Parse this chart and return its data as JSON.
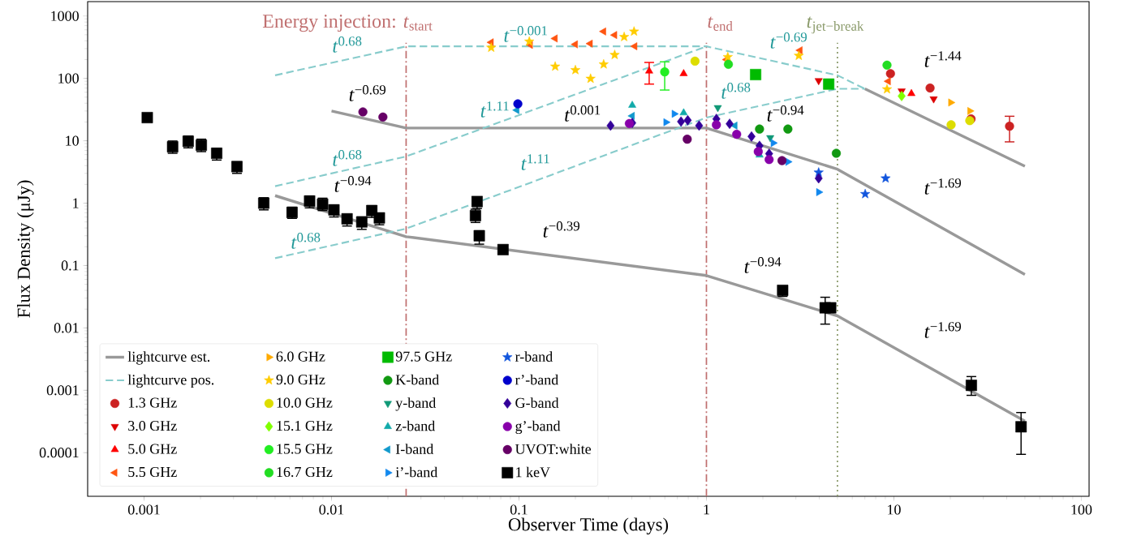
{
  "chart_data": {
    "type": "scatter",
    "xlabel": "Observer Time (days)",
    "ylabel": "Flux Density (μJy)",
    "log": "xy",
    "xlim": [
      0.0005,
      110
    ],
    "ylim": [
      2e-05,
      1700
    ],
    "xticks": [
      0.001,
      0.01,
      0.1,
      1,
      10,
      100
    ],
    "yticks": [
      0.0001,
      0.001,
      0.01,
      0.1,
      1,
      10,
      100,
      1000
    ],
    "legend": "bottom left",
    "series": [
      {
        "name": "lightcurve est.",
        "type": "line",
        "color": "#999999",
        "line_style": "solid",
        "x": [
          0.01,
          0.025,
          1,
          5,
          50
        ],
        "values": [
          30,
          16,
          16,
          3.5,
          0.072
        ]
      },
      {
        "type": "line",
        "color": "#999999",
        "line_style": "solid",
        "x": [
          0.005,
          0.025,
          1,
          5,
          50
        ],
        "values": [
          1.32,
          0.29,
          0.069,
          0.0156,
          0.00032
        ]
      },
      {
        "type": "line",
        "color": "#999999",
        "line_style": "solid",
        "x": [
          7,
          50
        ],
        "values": [
          68,
          3.9
        ]
      },
      {
        "name": "lightcurve pos.",
        "type": "line",
        "color": "#88cccc",
        "line_style": "dashed",
        "x": [
          0.005,
          0.025,
          1,
          5,
          7
        ],
        "values": [
          112,
          326,
          326,
          112,
          68
        ]
      },
      {
        "type": "line",
        "color": "#88cccc",
        "line_style": "dashed",
        "x": [
          0.005,
          0.025,
          1
        ],
        "values": [
          1.87,
          5.6,
          326
        ]
      },
      {
        "type": "line",
        "color": "#88cccc",
        "line_style": "dashed",
        "x": [
          0.005,
          0.025,
          1,
          5,
          7
        ],
        "values": [
          0.131,
          0.39,
          23.5,
          68,
          68
        ]
      },
      {
        "name": "1.3 GHz",
        "color": "#cc2222",
        "marker": "circle",
        "x": [
          9.59,
          15.6,
          25.8,
          41.4
        ],
        "values": [
          119,
          70,
          22.4,
          17.1
        ],
        "errors": [
          null,
          null,
          null,
          [
            9.6,
            24.7
          ]
        ]
      },
      {
        "name": "3.0 GHz",
        "color": "#dd0000",
        "marker": "triangle-down",
        "x": [
          3.97,
          11.0,
          16.3
        ],
        "values": [
          92,
          63,
          47
        ]
      },
      {
        "name": "5.0 GHz",
        "color": "#ff0000",
        "marker": "triangle",
        "x": [
          0.495,
          0.756,
          12.4
        ],
        "values": [
          131,
          119,
          57
        ],
        "errors": [
          [
            81,
            180
          ],
          null,
          null
        ]
      },
      {
        "name": "5.5 GHz",
        "color": "#ff5511",
        "marker": "triangle-left",
        "x": [
          0.0711,
          0.115,
          0.156,
          0.2,
          0.24,
          0.283,
          0.324,
          0.415,
          1.28,
          3.16,
          9.34
        ],
        "values": [
          378,
          344,
          436,
          351,
          361,
          565,
          495,
          327,
          200,
          282,
          90
        ]
      },
      {
        "name": "6.0 GHz",
        "color": "#ffaa00",
        "marker": "triangle-right",
        "x": [
          20.1,
          25.4
        ],
        "values": [
          41,
          30
        ]
      },
      {
        "name": "9.0 GHz",
        "color": "#ffcc00",
        "marker": "star",
        "x": [
          0.0711,
          0.1135,
          0.156,
          0.2,
          0.241,
          0.283,
          0.324,
          0.364,
          0.411,
          1.3,
          3.11,
          9.19
        ],
        "values": [
          311,
          390,
          155,
          136,
          99,
          168,
          238,
          462,
          565,
          220,
          231,
          67
        ]
      },
      {
        "name": "10.0 GHz",
        "color": "#dddd00",
        "marker": "circle",
        "x": [
          0.869,
          20.2,
          25.4
        ],
        "values": [
          189,
          18,
          21
        ]
      },
      {
        "name": "15.1 GHz",
        "color": "#80ff00",
        "marker": "diamond",
        "x": [
          11.0
        ],
        "values": [
          52
        ]
      },
      {
        "name": "15.5 GHz",
        "color": "#22ee22",
        "marker": "circle",
        "x": [
          0.599
        ],
        "values": [
          127
        ],
        "errors": [
          [
            65,
            184
          ]
        ]
      },
      {
        "name": "16.7 GHz",
        "color": "#22dd22",
        "marker": "circle",
        "x": [
          1.31,
          9.19
        ],
        "values": [
          168,
          163
        ]
      },
      {
        "name": "97.5 GHz",
        "color": "#00bb00",
        "marker": "square",
        "x": [
          1.83,
          4.49
        ],
        "values": [
          115,
          81
        ]
      },
      {
        "name": "K-band",
        "color": "#119911",
        "marker": "circle",
        "x": [
          1.92,
          2.72,
          4.93
        ],
        "values": [
          15.4,
          15.4,
          6.3
        ]
      },
      {
        "name": "y-band",
        "color": "#119977",
        "marker": "triangle-down",
        "x": [
          1.15,
          2.19
        ],
        "values": [
          34,
          11.2
        ]
      },
      {
        "name": "z-band",
        "color": "#11aaaa",
        "marker": "triangle",
        "x": [
          0.402,
          0.756,
          1.92
        ],
        "values": [
          37,
          28,
          5.9
        ]
      },
      {
        "name": "I-band",
        "color": "#1199cc",
        "marker": "triangle-left",
        "x": [
          0.0975,
          0.402,
          1.42
        ],
        "values": [
          31,
          25,
          17.5
        ]
      },
      {
        "name": "i’-band",
        "color": "#1188ee",
        "marker": "triangle-right",
        "x": [
          0.608,
          0.673,
          2.27,
          2.72,
          3.97
        ],
        "values": [
          19.8,
          27,
          9.2,
          4.6,
          1.5
        ]
      },
      {
        "name": "r-band",
        "color": "#1155dd",
        "marker": "star",
        "x": [
          3.97,
          7.03,
          9.03
        ],
        "values": [
          3.1,
          1.4,
          2.5
        ]
      },
      {
        "name": "r’-band",
        "color": "#0000cc",
        "marker": "circle",
        "x": [
          0.0986
        ],
        "values": [
          39
        ]
      },
      {
        "name": "G-band",
        "color": "#330099",
        "marker": "diamond",
        "x": [
          0.308,
          0.402,
          0.732,
          0.795,
          0.914,
          1.13,
          1.33,
          1.74,
          1.92,
          2.16,
          3.97
        ],
        "values": [
          17.5,
          19.3,
          20.3,
          21.3,
          17.5,
          22.4,
          18.7,
          11.7,
          8.3,
          6.2,
          2.5
        ]
      },
      {
        "name": "g’-band",
        "color": "#8800aa",
        "marker": "circle",
        "x": [
          0.388,
          1.13,
          1.45,
          1.89,
          2.16
        ],
        "values": [
          18.9,
          18,
          12.7,
          6.7,
          5.0
        ]
      },
      {
        "name": "UVOT:white",
        "color": "#660066",
        "marker": "circle",
        "x": [
          0.0147,
          0.0188,
          0.79,
          2.53
        ],
        "values": [
          29,
          24,
          10.6,
          4.8
        ]
      },
      {
        "name": "1 keV",
        "color": "#000000",
        "marker": "square",
        "x": [
          0.00104,
          0.00142,
          0.00172,
          0.00202,
          0.00244,
          0.00313,
          0.00435,
          0.00616,
          0.00764,
          0.00896,
          0.0103,
          0.0121,
          0.0145,
          0.0164,
          0.018,
          0.0586,
          0.0598,
          0.0614,
          0.0822,
          2.55,
          4.3,
          4.6,
          25.9,
          47.7
        ],
        "values": [
          23.5,
          8.0,
          9.8,
          8.5,
          6.3,
          3.85,
          1.0,
          0.71,
          1.08,
          0.96,
          0.78,
          0.56,
          0.5,
          0.76,
          0.58,
          0.63,
          1.06,
          0.3,
          0.18,
          0.04,
          0.021,
          0.021,
          0.0012,
          0.00026
        ],
        "errors": [
          null,
          [
            6.3,
            9.9
          ],
          [
            7.7,
            11.9
          ],
          [
            6.7,
            10.6
          ],
          [
            4.9,
            7.5
          ],
          [
            3.0,
            4.6
          ],
          [
            0.78,
            1.22
          ],
          [
            0.57,
            0.86
          ],
          [
            0.84,
            1.3
          ],
          [
            0.76,
            1.2
          ],
          [
            0.6,
            0.93
          ],
          [
            0.43,
            0.66
          ],
          [
            0.38,
            0.6
          ],
          [
            0.59,
            0.91
          ],
          [
            0.45,
            0.69
          ],
          [
            0.49,
            0.8
          ],
          [
            0.82,
            1.26
          ],
          [
            0.22,
            0.36
          ],
          null,
          [
            0.032,
            0.044
          ],
          [
            0.0115,
            0.031
          ],
          null,
          [
            0.00083,
            0.00166
          ],
          [
            9.4e-05,
            0.00044
          ]
        ]
      }
    ],
    "ref_lines": [
      {
        "axis": "x",
        "value": 0.025,
        "label": "Energy injection: *t*$_{start}$",
        "color": "#c07070",
        "line_style": "dashdot"
      },
      {
        "axis": "x",
        "value": 1,
        "label": "*t*$_{end}$",
        "color": "#c07070",
        "line_style": "dashdot"
      },
      {
        "axis": "x",
        "value": 5,
        "label": "*t*$_{jet−break}$",
        "color": "#8a9a6a",
        "line_style": "dotted"
      }
    ],
    "annotations": [
      "*t*$^{0.68}$",
      "*t*$^{−0.69}$",
      "*t*$^{0.68}$",
      "*t*$^{−0.94}$",
      "*t*$^{0.68}$",
      "*t*$^{−0.001}$",
      "*t*$^{1.11}$",
      "*t*$^{0.001}$",
      "*t*$^{1.11}$",
      "*t*$^{−0.39}$",
      "*t*$^{−0.94}$",
      "*t*$^{−0.69}$",
      "*t*$^{0.68}$",
      "*t*$^{−0.94}$",
      "*t*$^{−1.44}$",
      "*t*$^{−1.69}$",
      "*t*$^{−1.69}$"
    ]
  }
}
